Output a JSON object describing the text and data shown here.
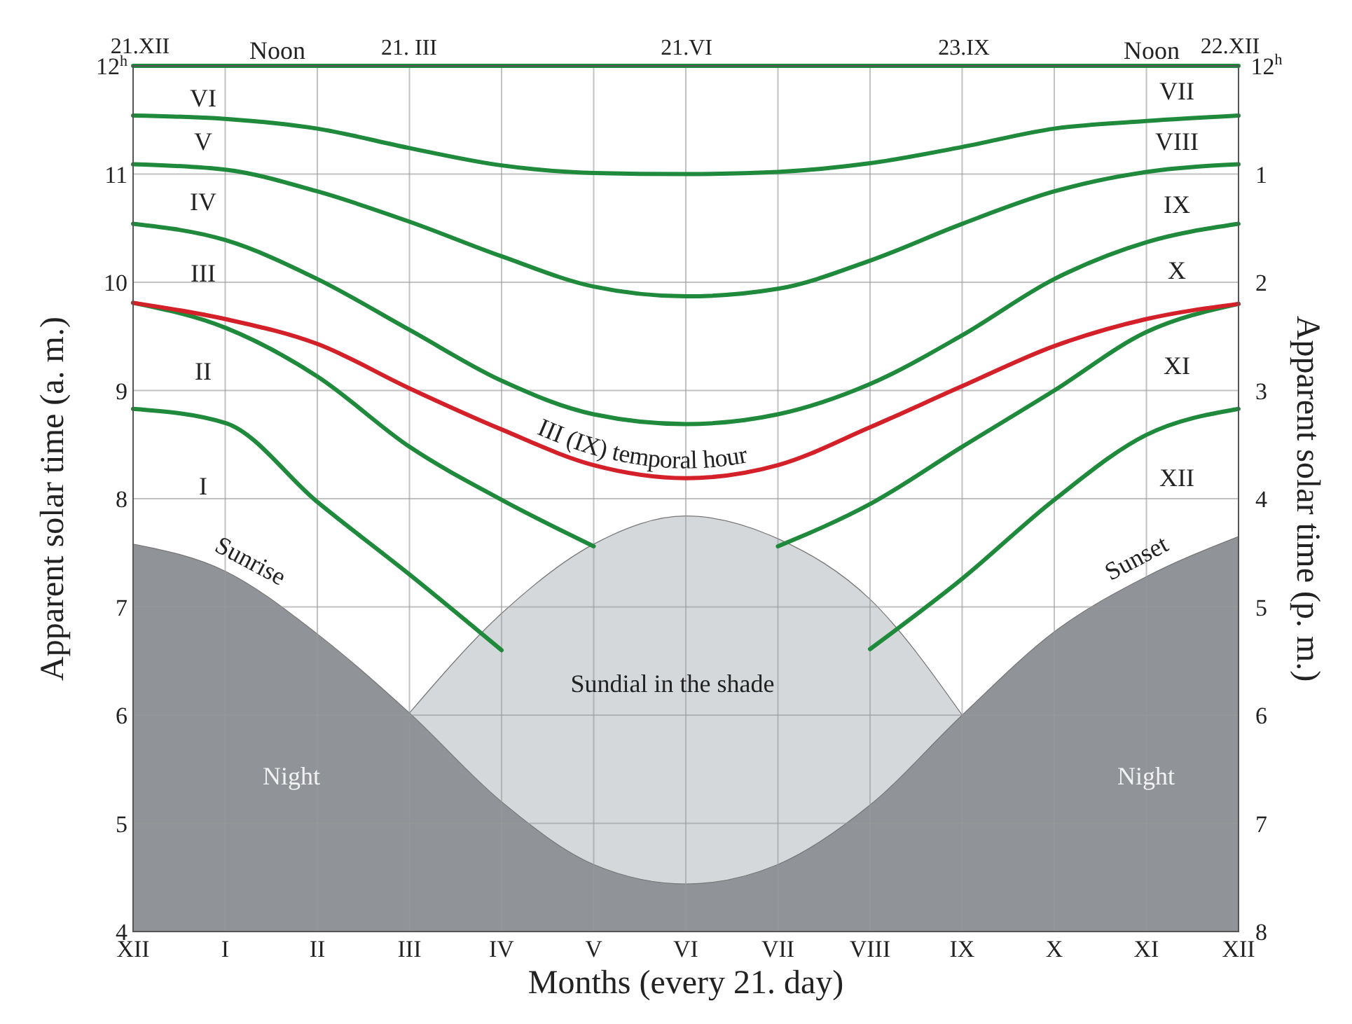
{
  "chart_data": {
    "type": "line",
    "xlabel": "Months (every 21. day)",
    "ylabel": "Apparent solar time (a. m.)",
    "y2label": "Apparent solar time (p. m.)",
    "categories": [
      "XII",
      "I",
      "II",
      "III",
      "IV",
      "V",
      "VI",
      "VII",
      "VIII",
      "IX",
      "X",
      "XI",
      "XII"
    ],
    "ylim": [
      4,
      12
    ],
    "yticks": [
      4,
      5,
      6,
      7,
      8,
      9,
      10,
      11,
      {
        "value": 12,
        "label": "12$^{h}$"
      }
    ],
    "y2lim": [
      8,
      0
    ],
    "y2ticks": [
      1,
      2,
      3,
      4,
      5,
      6,
      7,
      8
    ],
    "grid": true,
    "legend": false,
    "series": [
      {
        "type": "area",
        "color": "#d5d8db",
        "values": [
          null,
          null,
          null,
          6.02,
          6.94,
          7.58,
          7.84,
          7.63,
          7.07,
          6.0,
          null,
          null,
          null
        ]
      },
      {
        "type": "area",
        "color": "#909397",
        "values": [
          7.58,
          7.33,
          6.75,
          6.02,
          5.2,
          4.62,
          4.44,
          4.62,
          5.17,
          6.0,
          6.77,
          7.28,
          7.65
        ]
      },
      {
        "color": "#1f8a3c",
        "values": [
          12,
          12,
          12,
          12,
          12,
          12,
          12,
          12,
          12,
          12,
          12,
          12,
          12
        ]
      },
      {
        "color": "#1f8a3c",
        "values": [
          11.54,
          11.51,
          11.42,
          11.24,
          11.08,
          11.01,
          11.0,
          11.02,
          11.1,
          11.25,
          11.42,
          11.49,
          11.54
        ]
      },
      {
        "color": "#1f8a3c",
        "values": [
          11.09,
          11.04,
          10.84,
          10.56,
          10.24,
          9.96,
          9.87,
          9.94,
          10.2,
          10.54,
          10.84,
          11.02,
          11.09
        ]
      },
      {
        "color": "#1f8a3c",
        "values": [
          10.54,
          10.39,
          10.03,
          9.56,
          9.09,
          8.78,
          8.69,
          8.78,
          9.06,
          9.51,
          10.03,
          10.37,
          10.54
        ]
      },
      {
        "color": "#1f8a3c",
        "values": [
          9.81,
          9.58,
          9.13,
          8.48,
          7.99,
          7.56,
          null,
          7.56,
          7.95,
          8.48,
          9.0,
          9.54,
          9.8
        ]
      },
      {
        "color": "#1f8a3c",
        "values": [
          8.83,
          8.7,
          7.97,
          7.3,
          6.6,
          null,
          null,
          null,
          6.61,
          7.26,
          7.99,
          8.59,
          8.83
        ]
      },
      {
        "name": "III (IX) temporal hour",
        "color": "#d42028",
        "values": [
          9.81,
          9.66,
          9.43,
          9.02,
          8.64,
          8.31,
          8.19,
          8.31,
          8.66,
          9.04,
          9.41,
          9.66,
          9.8
        ]
      }
    ],
    "annotations": [
      "VI",
      "V",
      "IV",
      "III",
      "II",
      "I",
      "VII",
      "VIII",
      "IX",
      "X",
      "XI",
      "XII",
      "Sunrise",
      "Sunset",
      "Night",
      "Night",
      "Sundial in the shade",
      "Noon",
      "Noon",
      "21.XII",
      "21. III",
      "21.VI",
      "23.IX",
      "22.XII",
      "12$^{h}$"
    ]
  }
}
